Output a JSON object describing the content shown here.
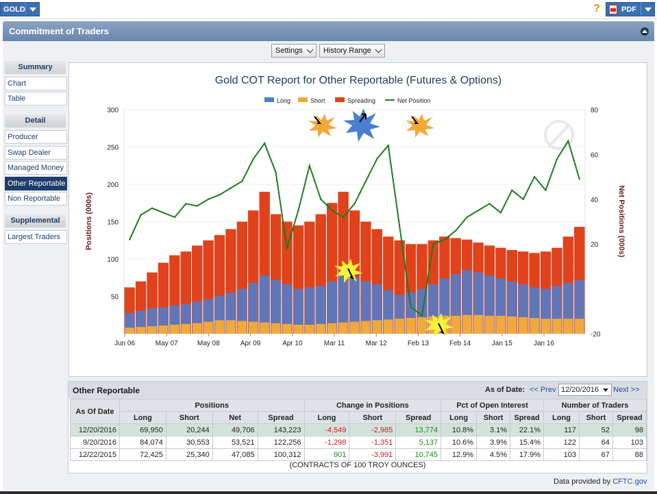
{
  "toolbar": {
    "symbol": "GOLD",
    "pdf_label": "PDF"
  },
  "header": {
    "title": "Commitment of Traders"
  },
  "controls": {
    "settings": "Settings",
    "history_range": "History Range"
  },
  "sidebar": {
    "summary_title": "Summary",
    "summary_items": [
      "Chart",
      "Table"
    ],
    "detail_title": "Detail",
    "detail_items": [
      "Producer",
      "Swap Dealer",
      "Managed Money",
      "Other Reportable",
      "Non Reportable"
    ],
    "active_item": "Other Reportable",
    "supplemental_title": "Supplemental",
    "supplemental_items": [
      "Largest Traders"
    ]
  },
  "colors": {
    "long": "#4a7fd4",
    "short": "#f2a93b",
    "spreading": "#e0421b",
    "net": "#1f7a1f"
  },
  "chart_data": {
    "type": "bar",
    "title": "Gold COT Report for Other Reportable (Futures & Options)",
    "ylabel": "Positions (000s)",
    "y2label": "Net Positions (000s)",
    "ylim": [
      0,
      300
    ],
    "y2lim": [
      -20,
      80
    ],
    "yticks": [
      50,
      100,
      150,
      200,
      250,
      300
    ],
    "y2ticks": [
      -20,
      20,
      40,
      60,
      80
    ],
    "xticks": [
      "Jun 06",
      "May 07",
      "May 08",
      "Apr 09",
      "Apr 10",
      "Mar 11",
      "Mar 12",
      "Feb 13",
      "Feb 14",
      "Jan 15",
      "Jan 16"
    ],
    "legend_position": "top",
    "series": [
      {
        "name": "Long",
        "kind": "bar",
        "values": [
          28,
          31,
          34,
          35,
          38,
          40,
          43,
          46,
          51,
          55,
          60,
          68,
          78,
          72,
          66,
          60,
          62,
          64,
          70,
          84,
          76,
          70,
          66,
          58,
          52,
          55,
          60,
          66,
          74,
          80,
          85,
          82,
          78,
          74,
          70,
          66,
          62,
          60,
          64,
          68,
          72
        ]
      },
      {
        "name": "Short",
        "kind": "bar",
        "values": [
          8,
          9,
          10,
          11,
          12,
          13,
          14,
          16,
          18,
          18,
          17,
          16,
          15,
          14,
          13,
          12,
          12,
          13,
          14,
          15,
          16,
          17,
          18,
          19,
          20,
          21,
          22,
          23,
          24,
          24,
          25,
          25,
          24,
          24,
          23,
          22,
          21,
          20,
          20,
          20,
          20
        ]
      },
      {
        "name": "Spreading",
        "kind": "bar",
        "values": [
          62,
          70,
          82,
          95,
          105,
          110,
          118,
          125,
          132,
          140,
          150,
          165,
          190,
          160,
          150,
          145,
          150,
          160,
          175,
          190,
          165,
          150,
          140,
          130,
          125,
          120,
          120,
          125,
          130,
          128,
          126,
          122,
          118,
          115,
          112,
          110,
          108,
          110,
          115,
          130,
          143
        ]
      },
      {
        "name": "Net Position",
        "kind": "line",
        "axis": "y2",
        "values": [
          22,
          33,
          36,
          34,
          32,
          38,
          37,
          40,
          42,
          45,
          48,
          58,
          65,
          52,
          18,
          35,
          55,
          40,
          35,
          32,
          38,
          48,
          58,
          64,
          28,
          -8,
          -12,
          20,
          22,
          26,
          32,
          35,
          38,
          34,
          44,
          40,
          50,
          44,
          58,
          66,
          49
        ]
      }
    ]
  },
  "table": {
    "title": "Other Reportable",
    "as_of_label": "As of Date:",
    "prev": "<< Prev",
    "next": "Next >>",
    "selected_date": "12/20/2016",
    "group_headers": [
      "Positions",
      "Change in Positions",
      "Pct of Open Interest",
      "Number of Traders"
    ],
    "date_header": "As Of Date",
    "sub_headers": {
      "positions": [
        "Long",
        "Short",
        "Net",
        "Spread"
      ],
      "change": [
        "Long",
        "Short",
        "Spread"
      ],
      "pct": [
        "Long",
        "Short",
        "Spread"
      ],
      "traders": [
        "Long",
        "Short",
        "Spread"
      ]
    },
    "rows": [
      {
        "date": "12/20/2016",
        "pos": [
          "69,950",
          "20,244",
          "49,706",
          "143,223"
        ],
        "chg": [
          "-4,549",
          "-2,985",
          "13,774"
        ],
        "pct": [
          "10.8%",
          "3.1%",
          "22.1%"
        ],
        "traders": [
          "117",
          "52",
          "98"
        ]
      },
      {
        "date": "9/20/2016",
        "pos": [
          "84,074",
          "30,553",
          "53,521",
          "122,256"
        ],
        "chg": [
          "-1,298",
          "-1,351",
          "5,137"
        ],
        "pct": [
          "10.6%",
          "3.9%",
          "15.4%"
        ],
        "traders": [
          "122",
          "64",
          "103"
        ]
      },
      {
        "date": "12/22/2015",
        "pos": [
          "72,425",
          "25,340",
          "47,085",
          "100,312"
        ],
        "chg": [
          "901",
          "-3,991",
          "10,745"
        ],
        "pct": [
          "12.9%",
          "4.5%",
          "17.9%"
        ],
        "traders": [
          "103",
          "67",
          "88"
        ]
      }
    ],
    "footnote": "(CONTRACTS OF 100 TROY OUNCES)"
  },
  "footer": {
    "prefix": "Data provided by",
    "link": "CFTC.gov"
  }
}
